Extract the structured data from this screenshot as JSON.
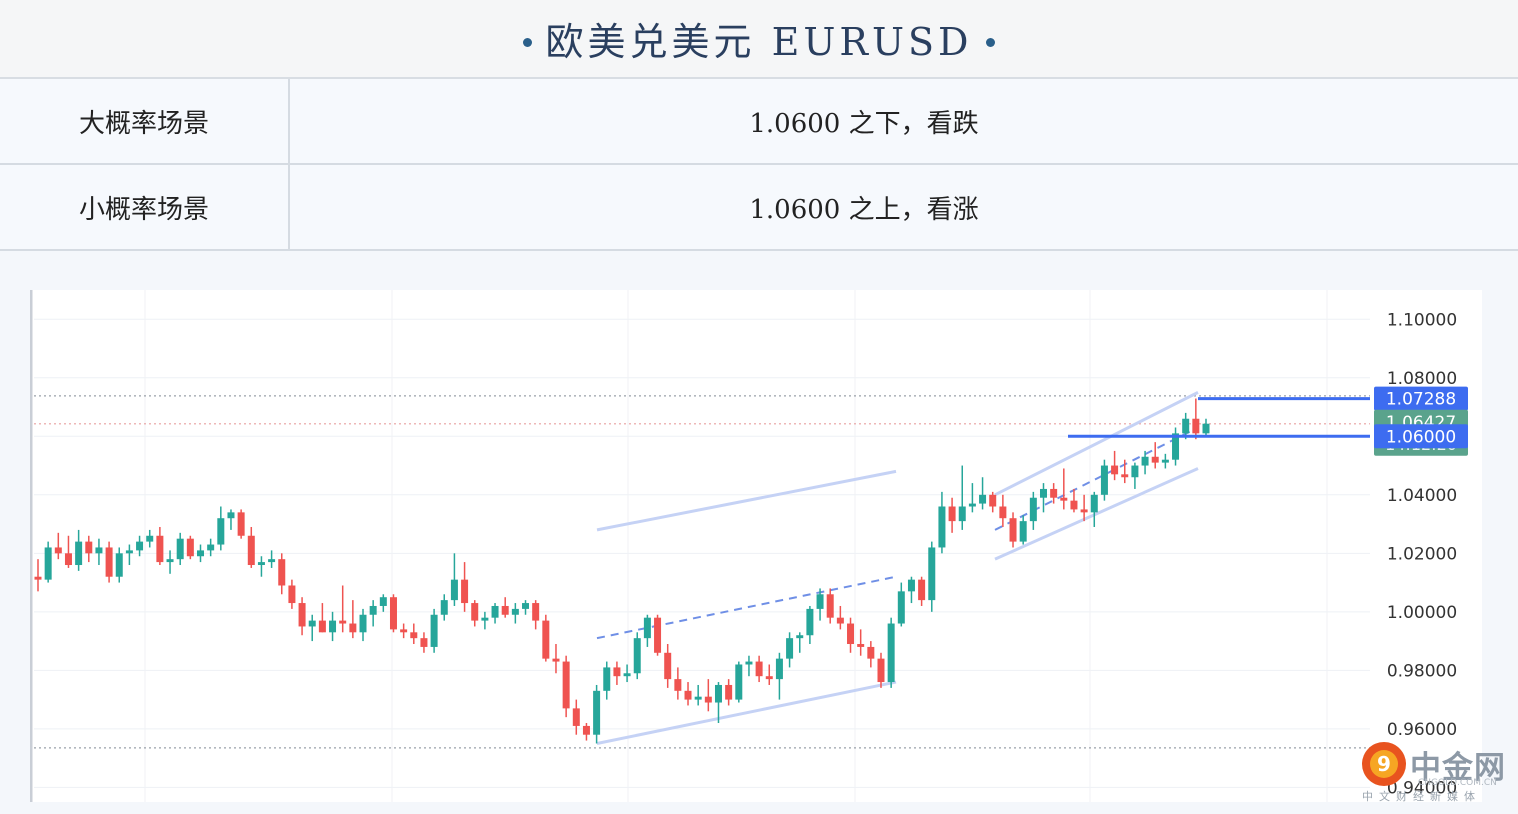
{
  "header": {
    "title": "欧美兑美元 EURUSD"
  },
  "scenarios": [
    {
      "label": "大概率场景",
      "value": "1.0600 之下，看跌"
    },
    {
      "label": "小概率场景",
      "value": "1.0600 之上，看涨"
    }
  ],
  "watermark": {
    "name": "中金网",
    "domain": "CNGOLD.COM.CN",
    "sub": "中文财经新媒体"
  },
  "colors": {
    "up": "#26a69a",
    "down": "#ef5350",
    "line": "#3d6cf0",
    "channel": "#c5d2f5"
  },
  "chart_data": {
    "type": "candlestick",
    "ylim": [
      0.935,
      1.11
    ],
    "y_ticks": [
      "1.10000",
      "1.08000",
      "1.06000",
      "1.04000",
      "1.02000",
      "1.00000",
      "0.98000",
      "0.96000",
      "0.94000"
    ],
    "price_tags": [
      {
        "value": "1.07288",
        "time": "",
        "style": "blue"
      },
      {
        "value": "1.06427",
        "time": "14:12:20",
        "style": "green"
      },
      {
        "value": "1.06000",
        "time": "",
        "style": "blue"
      }
    ],
    "horizontal_lines": [
      1.07288,
      1.06
    ],
    "candles": [
      [
        1.012,
        1.018,
        1.007,
        1.011
      ],
      [
        1.011,
        1.024,
        1.01,
        1.022
      ],
      [
        1.022,
        1.027,
        1.018,
        1.02
      ],
      [
        1.02,
        1.026,
        1.015,
        1.016
      ],
      [
        1.016,
        1.028,
        1.014,
        1.024
      ],
      [
        1.024,
        1.026,
        1.017,
        1.02
      ],
      [
        1.02,
        1.025,
        1.016,
        1.022
      ],
      [
        1.022,
        1.024,
        1.01,
        1.012
      ],
      [
        1.012,
        1.022,
        1.01,
        1.02
      ],
      [
        1.02,
        1.023,
        1.016,
        1.021
      ],
      [
        1.021,
        1.026,
        1.019,
        1.024
      ],
      [
        1.024,
        1.028,
        1.022,
        1.026
      ],
      [
        1.026,
        1.029,
        1.016,
        1.017
      ],
      [
        1.017,
        1.021,
        1.013,
        1.018
      ],
      [
        1.018,
        1.027,
        1.016,
        1.025
      ],
      [
        1.025,
        1.026,
        1.018,
        1.019
      ],
      [
        1.019,
        1.023,
        1.017,
        1.021
      ],
      [
        1.021,
        1.025,
        1.019,
        1.023
      ],
      [
        1.023,
        1.036,
        1.021,
        1.032
      ],
      [
        1.032,
        1.035,
        1.028,
        1.034
      ],
      [
        1.034,
        1.035,
        1.025,
        1.026
      ],
      [
        1.026,
        1.029,
        1.015,
        1.016
      ],
      [
        1.016,
        1.019,
        1.012,
        1.017
      ],
      [
        1.017,
        1.021,
        1.015,
        1.018
      ],
      [
        1.018,
        1.02,
        1.006,
        1.009
      ],
      [
        1.009,
        1.011,
        1.001,
        1.003
      ],
      [
        1.003,
        1.005,
        0.992,
        0.995
      ],
      [
        0.995,
        0.999,
        0.99,
        0.997
      ],
      [
        0.997,
        1.003,
        0.993,
        0.993
      ],
      [
        0.993,
        1.0,
        0.99,
        0.997
      ],
      [
        0.997,
        1.009,
        0.993,
        0.996
      ],
      [
        0.996,
        1.004,
        0.991,
        0.993
      ],
      [
        0.993,
        1.001,
        0.99,
        0.999
      ],
      [
        0.999,
        1.004,
        0.995,
        1.002
      ],
      [
        1.002,
        1.006,
        1.0,
        1.005
      ],
      [
        1.005,
        1.006,
        0.993,
        0.994
      ],
      [
        0.994,
        0.996,
        0.991,
        0.993
      ],
      [
        0.993,
        0.996,
        0.989,
        0.991
      ],
      [
        0.991,
        0.993,
        0.986,
        0.988
      ],
      [
        0.988,
        1.001,
        0.986,
        0.999
      ],
      [
        0.999,
        1.006,
        0.997,
        1.004
      ],
      [
        1.004,
        1.02,
        1.002,
        1.011
      ],
      [
        1.011,
        1.017,
        1.0,
        1.003
      ],
      [
        1.003,
        1.004,
        0.995,
        0.997
      ],
      [
        0.997,
        1.0,
        0.994,
        0.998
      ],
      [
        0.998,
        1.003,
        0.996,
        1.002
      ],
      [
        1.002,
        1.005,
        0.998,
        0.999
      ],
      [
        0.999,
        1.003,
        0.996,
        1.001
      ],
      [
        1.001,
        1.004,
        0.999,
        1.003
      ],
      [
        1.003,
        1.004,
        0.994,
        0.997
      ],
      [
        0.997,
        0.999,
        0.983,
        0.984
      ],
      [
        0.984,
        0.989,
        0.979,
        0.983
      ],
      [
        0.983,
        0.985,
        0.964,
        0.967
      ],
      [
        0.967,
        0.97,
        0.958,
        0.961
      ],
      [
        0.961,
        0.962,
        0.956,
        0.958
      ],
      [
        0.958,
        0.975,
        0.955,
        0.973
      ],
      [
        0.973,
        0.983,
        0.97,
        0.981
      ],
      [
        0.981,
        0.983,
        0.975,
        0.978
      ],
      [
        0.978,
        0.982,
        0.976,
        0.979
      ],
      [
        0.979,
        0.993,
        0.977,
        0.991
      ],
      [
        0.991,
        0.999,
        0.988,
        0.998
      ],
      [
        0.998,
        0.999,
        0.985,
        0.986
      ],
      [
        0.986,
        0.989,
        0.974,
        0.977
      ],
      [
        0.977,
        0.981,
        0.97,
        0.973
      ],
      [
        0.973,
        0.976,
        0.968,
        0.97
      ],
      [
        0.97,
        0.975,
        0.968,
        0.971
      ],
      [
        0.971,
        0.977,
        0.966,
        0.969
      ],
      [
        0.969,
        0.976,
        0.962,
        0.975
      ],
      [
        0.975,
        0.977,
        0.968,
        0.97
      ],
      [
        0.97,
        0.983,
        0.969,
        0.982
      ],
      [
        0.982,
        0.985,
        0.978,
        0.983
      ],
      [
        0.983,
        0.985,
        0.976,
        0.978
      ],
      [
        0.978,
        0.982,
        0.975,
        0.977
      ],
      [
        0.977,
        0.986,
        0.97,
        0.984
      ],
      [
        0.984,
        0.993,
        0.981,
        0.991
      ],
      [
        0.991,
        0.993,
        0.986,
        0.992
      ],
      [
        0.992,
        1.002,
        0.989,
        1.001
      ],
      [
        1.001,
        1.008,
        0.997,
        1.006
      ],
      [
        1.006,
        1.008,
        0.996,
        0.998
      ],
      [
        0.998,
        1.002,
        0.994,
        0.996
      ],
      [
        0.996,
        0.998,
        0.986,
        0.989
      ],
      [
        0.989,
        0.994,
        0.985,
        0.988
      ],
      [
        0.988,
        0.99,
        0.981,
        0.984
      ],
      [
        0.984,
        0.986,
        0.974,
        0.976
      ],
      [
        0.976,
        0.998,
        0.974,
        0.996
      ],
      [
        0.996,
        1.01,
        0.995,
        1.007
      ],
      [
        1.007,
        1.012,
        1.003,
        1.011
      ],
      [
        1.011,
        1.012,
        1.002,
        1.004
      ],
      [
        1.004,
        1.024,
        1.0,
        1.022
      ],
      [
        1.022,
        1.041,
        1.02,
        1.036
      ],
      [
        1.036,
        1.039,
        1.027,
        1.031
      ],
      [
        1.031,
        1.05,
        1.028,
        1.036
      ],
      [
        1.036,
        1.044,
        1.034,
        1.037
      ],
      [
        1.037,
        1.046,
        1.035,
        1.04
      ],
      [
        1.04,
        1.041,
        1.034,
        1.036
      ],
      [
        1.036,
        1.04,
        1.029,
        1.032
      ],
      [
        1.032,
        1.034,
        1.022,
        1.024
      ],
      [
        1.024,
        1.033,
        1.023,
        1.031
      ],
      [
        1.031,
        1.041,
        1.028,
        1.039
      ],
      [
        1.039,
        1.044,
        1.034,
        1.042
      ],
      [
        1.042,
        1.044,
        1.037,
        1.039
      ],
      [
        1.039,
        1.049,
        1.035,
        1.038
      ],
      [
        1.038,
        1.042,
        1.034,
        1.035
      ],
      [
        1.035,
        1.04,
        1.031,
        1.034
      ],
      [
        1.034,
        1.041,
        1.029,
        1.04
      ],
      [
        1.04,
        1.052,
        1.038,
        1.05
      ],
      [
        1.05,
        1.055,
        1.045,
        1.047
      ],
      [
        1.047,
        1.052,
        1.044,
        1.046
      ],
      [
        1.046,
        1.051,
        1.042,
        1.05
      ],
      [
        1.05,
        1.055,
        1.047,
        1.053
      ],
      [
        1.053,
        1.058,
        1.049,
        1.051
      ],
      [
        1.051,
        1.054,
        1.049,
        1.052
      ],
      [
        1.052,
        1.063,
        1.05,
        1.061
      ],
      [
        1.061,
        1.068,
        1.059,
        1.066
      ],
      [
        1.066,
        1.0729,
        1.059,
        1.061
      ],
      [
        1.061,
        1.066,
        1.06,
        1.0643
      ]
    ]
  }
}
